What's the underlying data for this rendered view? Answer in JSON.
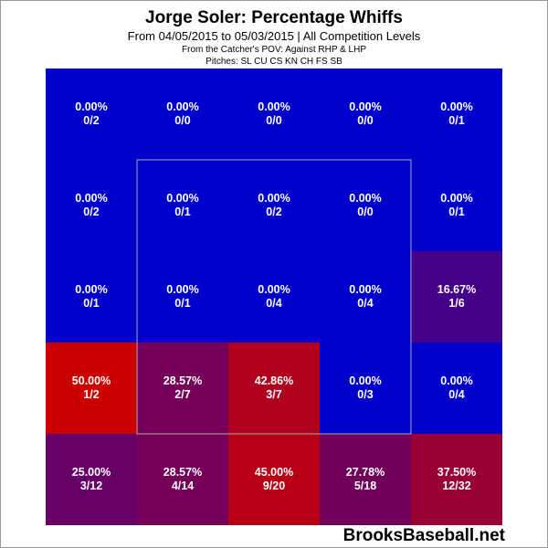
{
  "header": {
    "title": "Jorge Soler: Percentage Whiffs",
    "subtitle": "From 04/05/2015 to 05/03/2015 | All Competition Levels",
    "pov": "From the Catcher's POV:   Against RHP & LHP",
    "pitches": "Pitches:  SL  CU  CS  KN  CH  FS  SB"
  },
  "watermark": "BrooksBaseball.net",
  "colors": {
    "low": "#0000cc",
    "high": "#cc0000",
    "zone_border": "#aaaaaa"
  },
  "chart_data": {
    "type": "heatmap",
    "rows": 5,
    "cols": 5,
    "strike_zone": {
      "rows": [
        1,
        3
      ],
      "cols": [
        1,
        3
      ]
    },
    "cells": [
      [
        {
          "pct": "0.00%",
          "count": "0/2",
          "value": 0
        },
        {
          "pct": "0.00%",
          "count": "0/0",
          "value": 0
        },
        {
          "pct": "0.00%",
          "count": "0/0",
          "value": 0
        },
        {
          "pct": "0.00%",
          "count": "0/0",
          "value": 0
        },
        {
          "pct": "0.00%",
          "count": "0/1",
          "value": 0
        }
      ],
      [
        {
          "pct": "0.00%",
          "count": "0/2",
          "value": 0
        },
        {
          "pct": "0.00%",
          "count": "0/1",
          "value": 0
        },
        {
          "pct": "0.00%",
          "count": "0/2",
          "value": 0
        },
        {
          "pct": "0.00%",
          "count": "0/0",
          "value": 0
        },
        {
          "pct": "0.00%",
          "count": "0/1",
          "value": 0
        }
      ],
      [
        {
          "pct": "0.00%",
          "count": "0/1",
          "value": 0
        },
        {
          "pct": "0.00%",
          "count": "0/1",
          "value": 0
        },
        {
          "pct": "0.00%",
          "count": "0/4",
          "value": 0
        },
        {
          "pct": "0.00%",
          "count": "0/4",
          "value": 0
        },
        {
          "pct": "16.67%",
          "count": "1/6",
          "value": 16.67
        }
      ],
      [
        {
          "pct": "50.00%",
          "count": "1/2",
          "value": 50.0
        },
        {
          "pct": "28.57%",
          "count": "2/7",
          "value": 28.57
        },
        {
          "pct": "42.86%",
          "count": "3/7",
          "value": 42.86
        },
        {
          "pct": "0.00%",
          "count": "0/3",
          "value": 0
        },
        {
          "pct": "0.00%",
          "count": "0/4",
          "value": 0
        }
      ],
      [
        {
          "pct": "25.00%",
          "count": "3/12",
          "value": 25.0
        },
        {
          "pct": "28.57%",
          "count": "4/14",
          "value": 28.57
        },
        {
          "pct": "45.00%",
          "count": "9/20",
          "value": 45.0
        },
        {
          "pct": "27.78%",
          "count": "5/18",
          "value": 27.78
        },
        {
          "pct": "37.50%",
          "count": "12/32",
          "value": 37.5
        }
      ]
    ]
  }
}
